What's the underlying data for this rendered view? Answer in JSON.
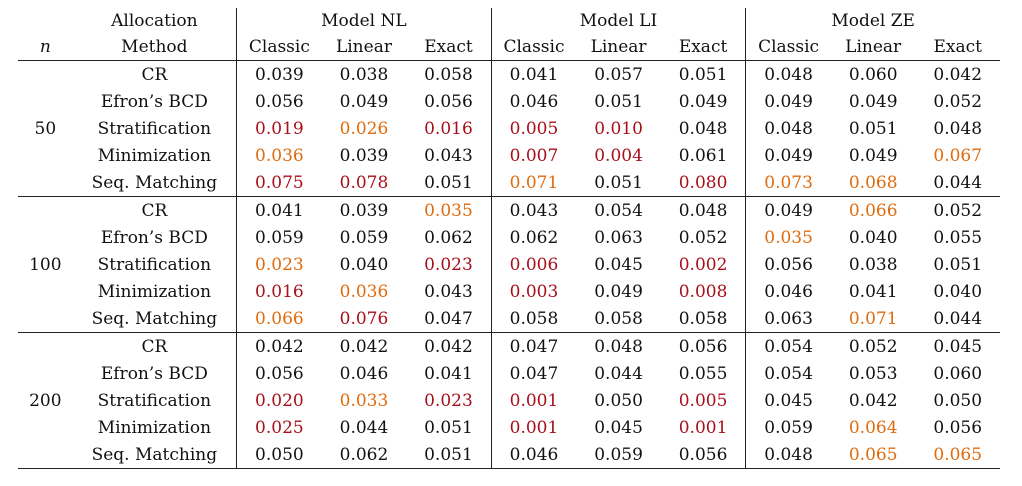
{
  "header": {
    "allocation_line1": "Allocation",
    "allocation_line2": "Method",
    "n_label": "n",
    "models": [
      "Model NL",
      "Model LI",
      "Model ZE"
    ],
    "tests": [
      "Classic",
      "Linear",
      "Exact"
    ]
  },
  "colors": {
    "red": "#a80f1a",
    "orange": "#e06b0c",
    "default": "#111111"
  },
  "groups": [
    {
      "n": "50",
      "rows": [
        {
          "method": "CR",
          "values": [
            "0.039",
            "0.038",
            "0.058",
            "0.041",
            "0.057",
            "0.051",
            "0.048",
            "0.060",
            "0.042"
          ],
          "colors": [
            "",
            "",
            "",
            "",
            "",
            "",
            "",
            "",
            ""
          ]
        },
        {
          "method": "Efron’s BCD",
          "values": [
            "0.056",
            "0.049",
            "0.056",
            "0.046",
            "0.051",
            "0.049",
            "0.049",
            "0.049",
            "0.052"
          ],
          "colors": [
            "",
            "",
            "",
            "",
            "",
            "",
            "",
            "",
            ""
          ]
        },
        {
          "method": "Stratification",
          "values": [
            "0.019",
            "0.026",
            "0.016",
            "0.005",
            "0.010",
            "0.048",
            "0.048",
            "0.051",
            "0.048"
          ],
          "colors": [
            "red",
            "orange",
            "red",
            "red",
            "red",
            "",
            "",
            "",
            ""
          ]
        },
        {
          "method": "Minimization",
          "values": [
            "0.036",
            "0.039",
            "0.043",
            "0.007",
            "0.004",
            "0.061",
            "0.049",
            "0.049",
            "0.067"
          ],
          "colors": [
            "orange",
            "",
            "",
            "red",
            "red",
            "",
            "",
            "",
            "orange"
          ]
        },
        {
          "method": "Seq. Matching",
          "values": [
            "0.075",
            "0.078",
            "0.051",
            "0.071",
            "0.051",
            "0.080",
            "0.073",
            "0.068",
            "0.044"
          ],
          "colors": [
            "red",
            "red",
            "",
            "orange",
            "",
            "red",
            "orange",
            "orange",
            ""
          ]
        }
      ]
    },
    {
      "n": "100",
      "rows": [
        {
          "method": "CR",
          "values": [
            "0.041",
            "0.039",
            "0.035",
            "0.043",
            "0.054",
            "0.048",
            "0.049",
            "0.066",
            "0.052"
          ],
          "colors": [
            "",
            "",
            "orange",
            "",
            "",
            "",
            "",
            "orange",
            ""
          ]
        },
        {
          "method": "Efron’s BCD",
          "values": [
            "0.059",
            "0.059",
            "0.062",
            "0.062",
            "0.063",
            "0.052",
            "0.035",
            "0.040",
            "0.055"
          ],
          "colors": [
            "",
            "",
            "",
            "",
            "",
            "",
            "orange",
            "",
            ""
          ]
        },
        {
          "method": "Stratification",
          "values": [
            "0.023",
            "0.040",
            "0.023",
            "0.006",
            "0.045",
            "0.002",
            "0.056",
            "0.038",
            "0.051"
          ],
          "colors": [
            "orange",
            "",
            "red",
            "red",
            "",
            "red",
            "",
            "",
            ""
          ]
        },
        {
          "method": "Minimization",
          "values": [
            "0.016",
            "0.036",
            "0.043",
            "0.003",
            "0.049",
            "0.008",
            "0.046",
            "0.041",
            "0.040"
          ],
          "colors": [
            "red",
            "orange",
            "",
            "red",
            "",
            "red",
            "",
            "",
            ""
          ]
        },
        {
          "method": "Seq. Matching",
          "values": [
            "0.066",
            "0.076",
            "0.047",
            "0.058",
            "0.058",
            "0.058",
            "0.063",
            "0.071",
            "0.044"
          ],
          "colors": [
            "orange",
            "red",
            "",
            "",
            "",
            "",
            "",
            "orange",
            ""
          ]
        }
      ]
    },
    {
      "n": "200",
      "rows": [
        {
          "method": "CR",
          "values": [
            "0.042",
            "0.042",
            "0.042",
            "0.047",
            "0.048",
            "0.056",
            "0.054",
            "0.052",
            "0.045"
          ],
          "colors": [
            "",
            "",
            "",
            "",
            "",
            "",
            "",
            "",
            ""
          ]
        },
        {
          "method": "Efron’s BCD",
          "values": [
            "0.056",
            "0.046",
            "0.041",
            "0.047",
            "0.044",
            "0.055",
            "0.054",
            "0.053",
            "0.060"
          ],
          "colors": [
            "",
            "",
            "",
            "",
            "",
            "",
            "",
            "",
            ""
          ]
        },
        {
          "method": "Stratification",
          "values": [
            "0.020",
            "0.033",
            "0.023",
            "0.001",
            "0.050",
            "0.005",
            "0.045",
            "0.042",
            "0.050"
          ],
          "colors": [
            "red",
            "orange",
            "red",
            "red",
            "",
            "red",
            "",
            "",
            ""
          ]
        },
        {
          "method": "Minimization",
          "values": [
            "0.025",
            "0.044",
            "0.051",
            "0.001",
            "0.045",
            "0.001",
            "0.059",
            "0.064",
            "0.056"
          ],
          "colors": [
            "red",
            "",
            "",
            "red",
            "",
            "red",
            "",
            "orange",
            ""
          ]
        },
        {
          "method": "Seq. Matching",
          "values": [
            "0.050",
            "0.062",
            "0.051",
            "0.046",
            "0.059",
            "0.056",
            "0.048",
            "0.065",
            "0.065"
          ],
          "colors": [
            "",
            "",
            "",
            "",
            "",
            "",
            "",
            "orange",
            "orange"
          ]
        }
      ]
    }
  ]
}
